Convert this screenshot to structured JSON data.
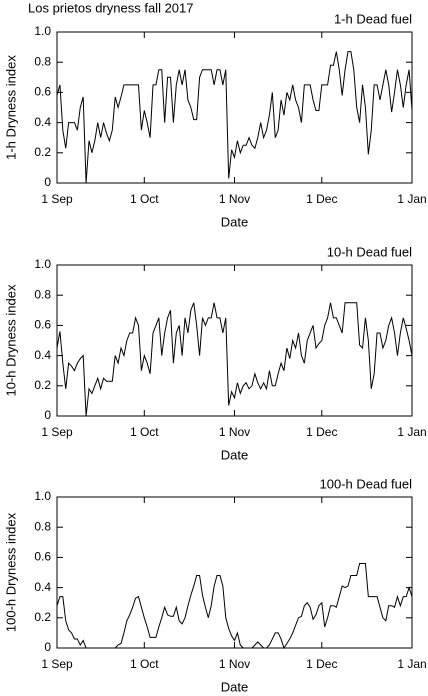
{
  "title": "Los prietos dryness fall 2017",
  "chart_data": [
    {
      "type": "line",
      "title": "1-h Dead fuel",
      "xlabel": "Date",
      "ylabel": "1-h Dryness index",
      "x": [
        0,
        1,
        2,
        3,
        4,
        5,
        6,
        7,
        8,
        9,
        10,
        11,
        12,
        13,
        14,
        15,
        16,
        17,
        18,
        19,
        20,
        21,
        22,
        23,
        24,
        25,
        26,
        27,
        28,
        29,
        30,
        31,
        32,
        33,
        34,
        35,
        36,
        37,
        38,
        39,
        40,
        41,
        42,
        43,
        44,
        45,
        46,
        47,
        48,
        49,
        50,
        51,
        52,
        53,
        54,
        55,
        56,
        57,
        58,
        59,
        60,
        61,
        62,
        63,
        64,
        65,
        66,
        67,
        68,
        69,
        70,
        71,
        72,
        73,
        74,
        75,
        76,
        77,
        78,
        79,
        80,
        81,
        82,
        83,
        84,
        85,
        86,
        87,
        88,
        89,
        90,
        91,
        92,
        93,
        94,
        95,
        96,
        97,
        98,
        99,
        100,
        101,
        102,
        103,
        104,
        105,
        106,
        107,
        108,
        109,
        110,
        111,
        112,
        113,
        114,
        115,
        116,
        117,
        118,
        119,
        120,
        121,
        122
      ],
      "series": [
        {
          "color": "#000000",
          "values": [
            0.58,
            0.65,
            0.35,
            0.23,
            0.4,
            0.4,
            0.4,
            0.35,
            0.5,
            0.57,
            0,
            0.28,
            0.2,
            0.28,
            0.4,
            0.3,
            0.4,
            0.33,
            0.28,
            0.35,
            0.57,
            0.5,
            0.57,
            0.65,
            0.65,
            0.65,
            0.65,
            0.65,
            0.65,
            0.35,
            0.48,
            0.4,
            0.3,
            0.65,
            0.65,
            0.75,
            0.75,
            0.4,
            0.7,
            0.7,
            0.4,
            0.65,
            0.75,
            0.65,
            0.75,
            0.55,
            0.5,
            0.42,
            0.42,
            0.7,
            0.75,
            0.75,
            0.75,
            0.75,
            0.65,
            0.75,
            0.75,
            0.65,
            0.75,
            0.03,
            0.22,
            0.17,
            0.28,
            0.2,
            0.25,
            0.25,
            0.3,
            0.25,
            0.23,
            0.3,
            0.4,
            0.3,
            0.35,
            0.45,
            0.6,
            0.3,
            0.35,
            0.55,
            0.45,
            0.6,
            0.55,
            0.65,
            0.55,
            0.5,
            0.4,
            0.65,
            0.65,
            0.65,
            0.55,
            0.48,
            0.48,
            0.65,
            0.65,
            0.65,
            0.78,
            0.78,
            0.87,
            0.75,
            0.58,
            0.75,
            0.87,
            0.87,
            0.75,
            0.5,
            0.4,
            0.65,
            0.5,
            0.19,
            0.35,
            0.65,
            0.65,
            0.55,
            0.65,
            0.75,
            0.65,
            0.47,
            0.6,
            0.75,
            0.65,
            0.5,
            0.65,
            0.75,
            0.48
          ]
        }
      ],
      "xlim": [
        0,
        122
      ],
      "xticks": [
        {
          "value": 0,
          "label": "1 Sep"
        },
        {
          "value": 30,
          "label": "1 Oct"
        },
        {
          "value": 61,
          "label": "1 Nov"
        },
        {
          "value": 91,
          "label": "1 Dec"
        },
        {
          "value": 122,
          "label": "1 Jan"
        }
      ],
      "ylim": [
        0,
        1
      ],
      "yticks": [
        0,
        0.2,
        0.4,
        0.6,
        0.8,
        {
          "value": 1,
          "label": "1.0"
        }
      ],
      "grid": false
    },
    {
      "type": "line",
      "title": "10-h Dead fuel",
      "xlabel": "Date",
      "ylabel": "10-h Dryness index",
      "x": [
        0,
        1,
        2,
        3,
        4,
        5,
        6,
        7,
        8,
        9,
        10,
        11,
        12,
        13,
        14,
        15,
        16,
        17,
        18,
        19,
        20,
        21,
        22,
        23,
        24,
        25,
        26,
        27,
        28,
        29,
        30,
        31,
        32,
        33,
        34,
        35,
        36,
        37,
        38,
        39,
        40,
        41,
        42,
        43,
        44,
        45,
        46,
        47,
        48,
        49,
        50,
        51,
        52,
        53,
        54,
        55,
        56,
        57,
        58,
        59,
        60,
        61,
        62,
        63,
        64,
        65,
        66,
        67,
        68,
        69,
        70,
        71,
        72,
        73,
        74,
        75,
        76,
        77,
        78,
        79,
        80,
        81,
        82,
        83,
        84,
        85,
        86,
        87,
        88,
        89,
        90,
        91,
        92,
        93,
        94,
        95,
        96,
        97,
        98,
        99,
        100,
        101,
        102,
        103,
        104,
        105,
        106,
        107,
        108,
        109,
        110,
        111,
        112,
        113,
        114,
        115,
        116,
        117,
        118,
        119,
        120,
        121,
        122
      ],
      "series": [
        {
          "color": "#000000",
          "values": [
            0.45,
            0.56,
            0.35,
            0.18,
            0.35,
            0.33,
            0.3,
            0.35,
            0.38,
            0.4,
            0,
            0.18,
            0.15,
            0.2,
            0.25,
            0.18,
            0.25,
            0.23,
            0.23,
            0.23,
            0.4,
            0.35,
            0.45,
            0.4,
            0.5,
            0.55,
            0.55,
            0.65,
            0.6,
            0.3,
            0.4,
            0.35,
            0.28,
            0.55,
            0.6,
            0.65,
            0.4,
            0.55,
            0.65,
            0.7,
            0.35,
            0.55,
            0.6,
            0.4,
            0.65,
            0.55,
            0.7,
            0.75,
            0.6,
            0.4,
            0.65,
            0.6,
            0.65,
            0.65,
            0.75,
            0.65,
            0.65,
            0.55,
            0.65,
            0.07,
            0.16,
            0.12,
            0.22,
            0.15,
            0.2,
            0.22,
            0.18,
            0.2,
            0.28,
            0.22,
            0.18,
            0.22,
            0.18,
            0.3,
            0.2,
            0.2,
            0.28,
            0.35,
            0.3,
            0.45,
            0.38,
            0.5,
            0.45,
            0.55,
            0.4,
            0.35,
            0.5,
            0.55,
            0.6,
            0.45,
            0.48,
            0.5,
            0.6,
            0.65,
            0.75,
            0.65,
            0.65,
            0.6,
            0.55,
            0.75,
            0.75,
            0.75,
            0.75,
            0.75,
            0.47,
            0.45,
            0.65,
            0.5,
            0.18,
            0.28,
            0.55,
            0.55,
            0.45,
            0.5,
            0.6,
            0.65,
            0.55,
            0.4,
            0.55,
            0.65,
            0.58,
            0.5,
            0.4
          ]
        }
      ],
      "xlim": [
        0,
        122
      ],
      "xticks": [
        {
          "value": 0,
          "label": "1 Sep"
        },
        {
          "value": 30,
          "label": "1 Oct"
        },
        {
          "value": 61,
          "label": "1 Nov"
        },
        {
          "value": 91,
          "label": "1 Dec"
        },
        {
          "value": 122,
          "label": "1 Jan"
        }
      ],
      "ylim": [
        0,
        1
      ],
      "yticks": [
        0,
        0.2,
        0.4,
        0.6,
        0.8,
        {
          "value": 1,
          "label": "1.0"
        }
      ],
      "grid": false
    },
    {
      "type": "line",
      "title": "100-h Dead fuel",
      "xlabel": "Date",
      "ylabel": "100-h Dryness index",
      "x": [
        0,
        1,
        2,
        3,
        4,
        5,
        6,
        7,
        8,
        9,
        10,
        11,
        12,
        13,
        14,
        15,
        16,
        17,
        18,
        19,
        20,
        21,
        22,
        23,
        24,
        25,
        26,
        27,
        28,
        29,
        30,
        31,
        32,
        33,
        34,
        35,
        36,
        37,
        38,
        39,
        40,
        41,
        42,
        43,
        44,
        45,
        46,
        47,
        48,
        49,
        50,
        51,
        52,
        53,
        54,
        55,
        56,
        57,
        58,
        59,
        60,
        61,
        62,
        63,
        64,
        65,
        66,
        67,
        68,
        69,
        70,
        71,
        72,
        73,
        74,
        75,
        76,
        77,
        78,
        79,
        80,
        81,
        82,
        83,
        84,
        85,
        86,
        87,
        88,
        89,
        90,
        91,
        92,
        93,
        94,
        95,
        96,
        97,
        98,
        99,
        100,
        101,
        102,
        103,
        104,
        105,
        106,
        107,
        108,
        109,
        110,
        111,
        112,
        113,
        114,
        115,
        116,
        117,
        118,
        119,
        120,
        121,
        122
      ],
      "series": [
        {
          "color": "#000000",
          "values": [
            0.28,
            0.34,
            0.34,
            0.18,
            0.12,
            0.1,
            0.06,
            0.06,
            0.02,
            0.05,
            0,
            0,
            0,
            0,
            0,
            0,
            0,
            0,
            0,
            0,
            0,
            0.02,
            0.03,
            0.1,
            0.18,
            0.22,
            0.27,
            0.33,
            0.34,
            0.27,
            0.2,
            0.14,
            0.07,
            0.07,
            0.07,
            0.14,
            0.2,
            0.27,
            0.22,
            0.21,
            0.21,
            0.27,
            0.18,
            0.16,
            0.2,
            0.28,
            0.35,
            0.41,
            0.48,
            0.48,
            0.35,
            0.27,
            0.2,
            0.28,
            0.41,
            0.48,
            0.48,
            0.41,
            0.2,
            0.13,
            0.08,
            0.05,
            0.1,
            0.02,
            0,
            0,
            0,
            0,
            0.02,
            0.04,
            0.02,
            0,
            0,
            0.02,
            0.06,
            0.1,
            0.1,
            0.06,
            0,
            0.03,
            0.06,
            0.1,
            0.15,
            0.2,
            0.21,
            0.28,
            0.3,
            0.27,
            0.19,
            0.22,
            0.28,
            0.3,
            0.14,
            0.2,
            0.28,
            0.28,
            0.27,
            0.34,
            0.41,
            0.4,
            0.41,
            0.48,
            0.48,
            0.48,
            0.56,
            0.56,
            0.56,
            0.34,
            0.34,
            0.34,
            0.34,
            0.27,
            0.2,
            0.18,
            0.28,
            0.28,
            0.27,
            0.34,
            0.28,
            0.34,
            0.34,
            0.4,
            0.34
          ]
        }
      ],
      "xlim": [
        0,
        122
      ],
      "xticks": [
        {
          "value": 0,
          "label": "1 Sep"
        },
        {
          "value": 30,
          "label": "1 Oct"
        },
        {
          "value": 61,
          "label": "1 Nov"
        },
        {
          "value": 91,
          "label": "1 Dec"
        },
        {
          "value": 122,
          "label": "1 Jan"
        }
      ],
      "ylim": [
        0,
        1
      ],
      "yticks": [
        0,
        0.2,
        0.4,
        0.6,
        0.8,
        {
          "value": 1,
          "label": "1.0"
        }
      ],
      "grid": false
    }
  ]
}
